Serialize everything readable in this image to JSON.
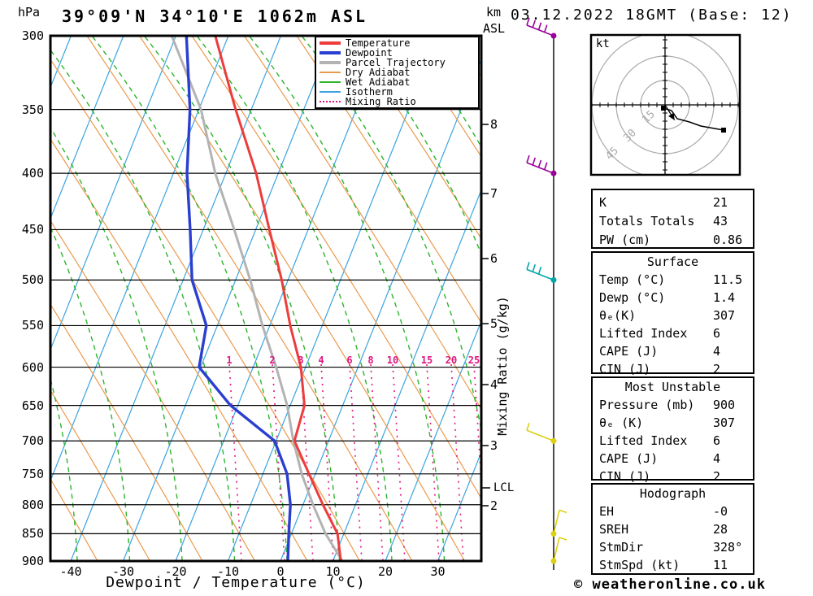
{
  "header": {
    "pressure_unit": "hPa",
    "title": "39°09'N 34°10'E 1062m ASL",
    "km_label": "km",
    "asl_label": "ASL",
    "datetime": "03.12.2022 18GMT (Base: 12)"
  },
  "legend": {
    "items": [
      {
        "label": "Temperature",
        "color_key": "temperature",
        "thick": true,
        "dotted": false
      },
      {
        "label": "Dewpoint",
        "color_key": "dewpoint",
        "thick": true,
        "dotted": false
      },
      {
        "label": "Parcel Trajectory",
        "color_key": "parcel",
        "thick": true,
        "dotted": false
      },
      {
        "label": "Dry Adiabat",
        "color_key": "dry_adiabat",
        "thick": false,
        "dotted": false
      },
      {
        "label": "Wet Adiabat",
        "color_key": "wet_adiabat",
        "thick": false,
        "dotted": false
      },
      {
        "label": "Isotherm",
        "color_key": "isotherm",
        "thick": false,
        "dotted": false
      },
      {
        "label": "Mixing Ratio",
        "color_key": "mixing_ratio",
        "thick": false,
        "dotted": true
      }
    ]
  },
  "axes": {
    "pressure_ticks": [
      300,
      350,
      400,
      450,
      500,
      550,
      600,
      650,
      700,
      750,
      800,
      850,
      900
    ],
    "km_ticks": [
      8,
      7,
      6,
      5,
      4,
      3,
      2
    ],
    "lcl_label": "LCL",
    "x_ticks": [
      -40,
      -30,
      -20,
      -10,
      0,
      10,
      20,
      30
    ],
    "x_label": "Dewpoint / Temperature (°C)",
    "mixing_axis_label": "Mixing Ratio (g/kg)"
  },
  "chart_data": {
    "type": "line",
    "subtype": "skewT-logP sounding",
    "title": "39°09'N 34°10'E 1062m ASL",
    "xlabel": "Dewpoint / Temperature (°C)",
    "ylabel": "hPa",
    "xlim": [
      -45,
      37
    ],
    "pressure_range_hPa": [
      300,
      900
    ],
    "isotherm_step_c": 10,
    "series": [
      {
        "name": "Temperature",
        "units": [
          "hPa",
          "°C"
        ],
        "points": [
          [
            300,
            -52.5
          ],
          [
            350,
            -43.0
          ],
          [
            400,
            -34.2
          ],
          [
            450,
            -27.4
          ],
          [
            500,
            -21.2
          ],
          [
            550,
            -16.1
          ],
          [
            600,
            -10.9
          ],
          [
            650,
            -7.3
          ],
          [
            700,
            -6.5
          ],
          [
            750,
            -1.2
          ],
          [
            800,
            3.8
          ],
          [
            850,
            8.8
          ],
          [
            900,
            11.5
          ]
        ]
      },
      {
        "name": "Dewpoint",
        "units": [
          "hPa",
          "°C"
        ],
        "points": [
          [
            300,
            -58.0
          ],
          [
            350,
            -51.7
          ],
          [
            400,
            -47.4
          ],
          [
            450,
            -42.5
          ],
          [
            500,
            -38.3
          ],
          [
            550,
            -32.1
          ],
          [
            600,
            -30.3
          ],
          [
            650,
            -21.4
          ],
          [
            700,
            -10.3
          ],
          [
            750,
            -5.4
          ],
          [
            800,
            -2.4
          ],
          [
            850,
            -0.5
          ],
          [
            900,
            1.4
          ]
        ]
      },
      {
        "name": "Parcel Trajectory",
        "units": [
          "hPa",
          "°C"
        ],
        "points": [
          [
            300,
            -60.8
          ],
          [
            350,
            -49.6
          ],
          [
            400,
            -42.0
          ],
          [
            450,
            -34.1
          ],
          [
            500,
            -27.2
          ],
          [
            550,
            -21.4
          ],
          [
            600,
            -15.6
          ],
          [
            650,
            -10.6
          ],
          [
            700,
            -6.7
          ],
          [
            750,
            -2.6
          ],
          [
            800,
            1.9
          ],
          [
            850,
            6.5
          ],
          [
            900,
            11.8
          ]
        ]
      }
    ],
    "mixing_ratio_lines_g_kg": [
      1,
      2,
      3,
      4,
      6,
      8,
      10,
      15,
      20,
      25
    ],
    "wind_barbs": [
      {
        "pressure_hPa": 300,
        "color_key": "barb_purple",
        "ticks": 4,
        "dir": "nw"
      },
      {
        "pressure_hPa": 400,
        "color_key": "barb_purple",
        "ticks": 4,
        "dir": "nw"
      },
      {
        "pressure_hPa": 500,
        "color_key": "barb_cyan",
        "ticks": 3,
        "dir": "nw"
      },
      {
        "pressure_hPa": 700,
        "color_key": "barb_yellow",
        "ticks": 1,
        "dir": "nw"
      },
      {
        "pressure_hPa": 850,
        "color_key": "barb_yellow",
        "ticks": 1,
        "dir": "se"
      },
      {
        "pressure_hPa": 900,
        "color_key": "barb_yellow",
        "ticks": 1,
        "dir": "se"
      }
    ],
    "hodograph": {
      "unit": "kt",
      "rings_kt": [
        15,
        30,
        45
      ],
      "trace_kt_uv": [
        [
          -1,
          -2
        ],
        [
          4,
          -3.5
        ],
        [
          7.5,
          -8.5
        ],
        [
          15,
          -10.5
        ],
        [
          22,
          -13
        ],
        [
          36,
          -15.5
        ]
      ],
      "storm_motion": {
        "dir_deg": 328,
        "speed_kt": 11
      }
    }
  },
  "panels": {
    "indices": {
      "rows": [
        {
          "label": "K",
          "value": "21"
        },
        {
          "label": "Totals Totals",
          "value": "43"
        },
        {
          "label": "PW (cm)",
          "value": "0.86"
        }
      ]
    },
    "surface": {
      "header": "Surface",
      "rows": [
        {
          "label": "Temp (°C)",
          "value": "11.5"
        },
        {
          "label": "Dewp (°C)",
          "value": "1.4"
        },
        {
          "label": "θₑ(K)",
          "value": "307"
        },
        {
          "label": "Lifted Index",
          "value": "6"
        },
        {
          "label": "CAPE (J)",
          "value": "4"
        },
        {
          "label": "CIN (J)",
          "value": "2"
        }
      ]
    },
    "most_unstable": {
      "header": "Most Unstable",
      "rows": [
        {
          "label": "Pressure (mb)",
          "value": "900"
        },
        {
          "label": "θₑ (K)",
          "value": "307"
        },
        {
          "label": "Lifted Index",
          "value": "6"
        },
        {
          "label": "CAPE (J)",
          "value": "4"
        },
        {
          "label": "CIN (J)",
          "value": "2"
        }
      ]
    },
    "hodograph": {
      "header": "Hodograph",
      "rows": [
        {
          "label": "EH",
          "value": "-0"
        },
        {
          "label": "SREH",
          "value": "28"
        },
        {
          "label": "StmDir",
          "value": "328°"
        },
        {
          "label": "StmSpd (kt)",
          "value": "11"
        }
      ]
    }
  },
  "hodograph_panel": {
    "unit_label": "kt"
  },
  "footer": {
    "copyright": "© weatheronline.co.uk"
  },
  "colors": {
    "temperature": "#ed3c3c",
    "dewpoint": "#2a3fd1",
    "parcel": "#b3b3b3",
    "dry_adiabat": "#eb9a4d",
    "wet_adiabat": "#2cb52c",
    "isotherm": "#3ba4df",
    "mixing_ratio": "#e01580",
    "barb_purple": "#9a009a",
    "barb_cyan": "#00a6a6",
    "barb_yellow": "#ddd012",
    "grid": "#000000",
    "ring_gray": "#aaaaaa"
  }
}
